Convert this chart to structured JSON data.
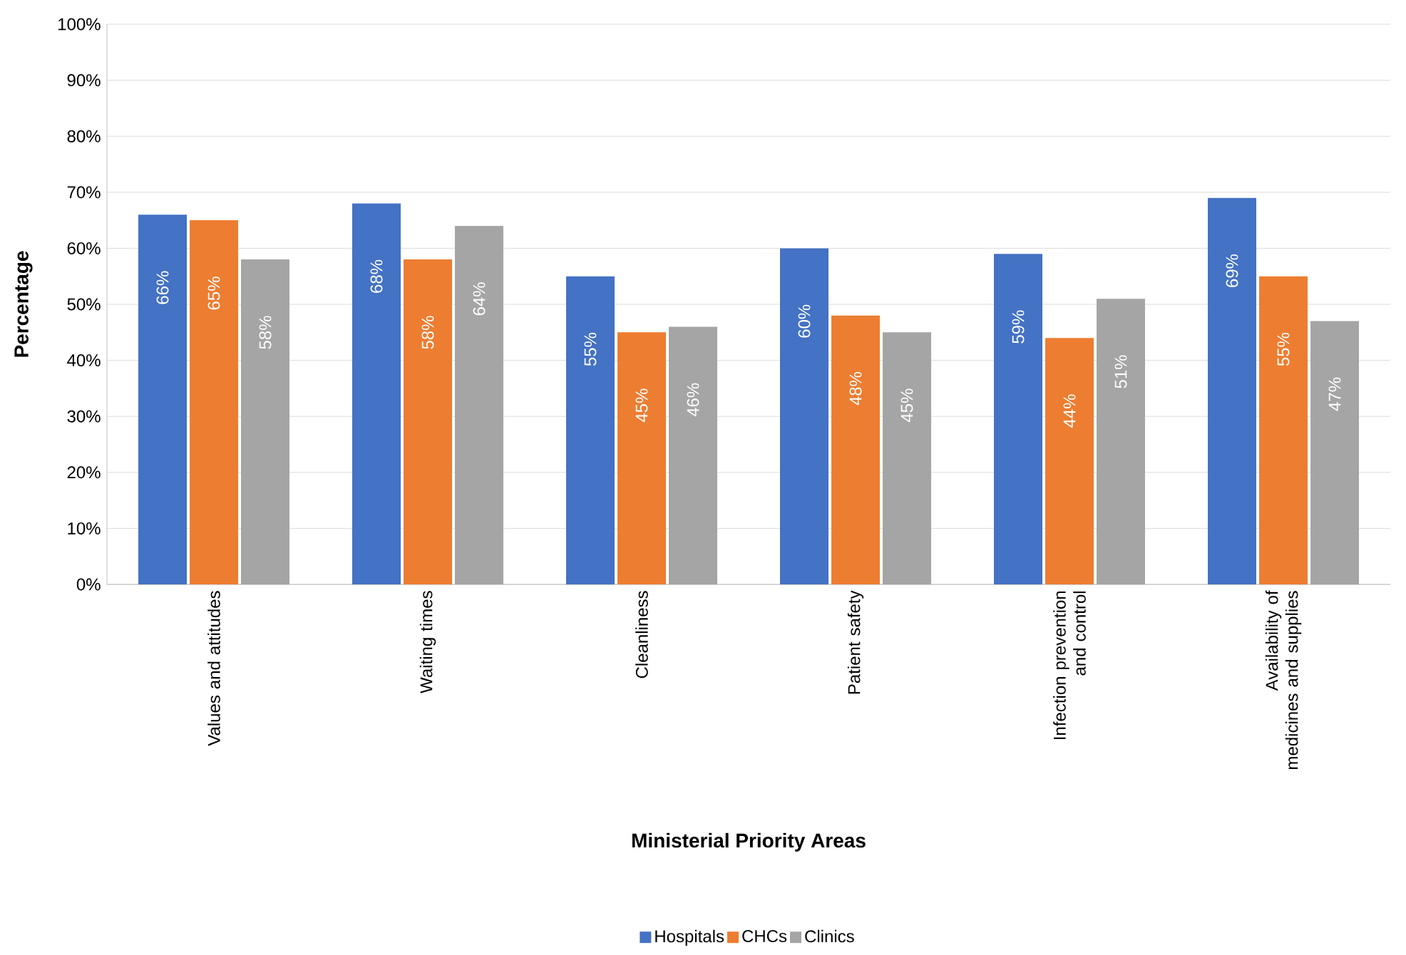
{
  "chart_data": {
    "type": "bar",
    "xlabel": "Ministerial Priority Areas",
    "ylabel": "Percentage",
    "categories": [
      "Values and attitudes",
      "Waiting times",
      "Cleanliness",
      "Patient safety",
      "Infection prevention and control",
      "Availability of medicines and supplies"
    ],
    "series": [
      {
        "name": "Hospitals",
        "color": "#4472c4",
        "values": [
          66,
          68,
          55,
          60,
          59,
          69
        ],
        "value_labels": [
          "66%",
          "68%",
          "55%",
          "60%",
          "59%",
          "69%"
        ]
      },
      {
        "name": "CHCs",
        "color": "#ed7d31",
        "values": [
          65,
          58,
          45,
          48,
          44,
          55
        ],
        "value_labels": [
          "65%",
          "58%",
          "45%",
          "48%",
          "44%",
          "55%"
        ]
      },
      {
        "name": "Clinics",
        "color": "#a5a5a5",
        "values": [
          58,
          64,
          46,
          45,
          51,
          47
        ],
        "value_labels": [
          "58%",
          "64%",
          "46%",
          "45%",
          "51%",
          "47%"
        ]
      }
    ],
    "ylim": [
      0,
      100
    ],
    "yticks": [
      {
        "value": 0,
        "label": "0%"
      },
      {
        "value": 10,
        "label": "10%"
      },
      {
        "value": 20,
        "label": "20%"
      },
      {
        "value": 30,
        "label": "30%"
      },
      {
        "value": 40,
        "label": "40%"
      },
      {
        "value": 50,
        "label": "50%"
      },
      {
        "value": 60,
        "label": "60%"
      },
      {
        "value": 70,
        "label": "70%"
      },
      {
        "value": 80,
        "label": "80%"
      },
      {
        "value": 90,
        "label": "90%"
      },
      {
        "value": 100,
        "label": "100%"
      }
    ],
    "grid": "y",
    "legend": "bottom"
  }
}
